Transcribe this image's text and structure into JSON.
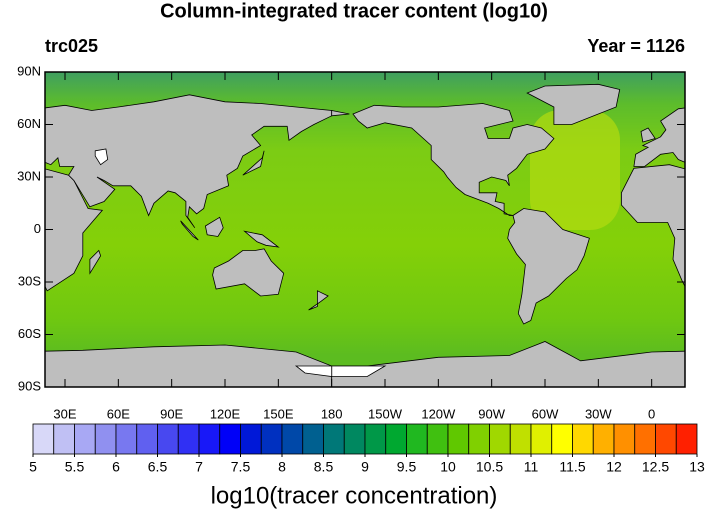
{
  "map": {
    "title": "Column-integrated tracer content (log10)",
    "left_label": "trc025",
    "right_label": "Year = 1126",
    "xlim": [
      18.75,
      378.75
    ],
    "ylim": [
      -90,
      90
    ],
    "lat_ticks": [
      {
        "value": 90,
        "label": "90N"
      },
      {
        "value": 60,
        "label": "60N"
      },
      {
        "value": 30,
        "label": "30N"
      },
      0,
      {
        "value": -30,
        "label": "30S"
      },
      {
        "value": -60,
        "label": "60S"
      },
      {
        "value": -90,
        "label": "90S"
      }
    ],
    "lon_ticks": [
      {
        "value": 30,
        "label": "30E"
      },
      {
        "value": 60,
        "label": "60E"
      },
      {
        "value": 90,
        "label": "90E"
      },
      {
        "value": 120,
        "label": "120E"
      },
      {
        "value": 150,
        "label": "150E"
      },
      180,
      {
        "value": 210,
        "label": "150W"
      },
      {
        "value": 240,
        "label": "120W"
      },
      {
        "value": 270,
        "label": "90W"
      },
      {
        "value": 300,
        "label": "60W"
      },
      {
        "value": 330,
        "label": "30W"
      },
      {
        "value": 360,
        "label": "0"
      }
    ],
    "colorbar": {
      "title": "log10(tracer concentration)",
      "range": [
        5,
        13
      ],
      "ticks": [
        5,
        5.5,
        6,
        6.5,
        7,
        7.5,
        8,
        8.5,
        9,
        9.5,
        10,
        10.5,
        11,
        11.5,
        12,
        12.5,
        13
      ],
      "colors": [
        "#d8d8f8",
        "#c0c0f4",
        "#a8a8f4",
        "#9090f0",
        "#7878f0",
        "#6060f0",
        "#4848f0",
        "#3030f4",
        "#1818f8",
        "#0000f8",
        "#0018d8",
        "#0030c0",
        "#0048a8",
        "#006090",
        "#007878",
        "#008860",
        "#009848",
        "#00a830",
        "#20b820",
        "#40c010",
        "#60c800",
        "#80d000",
        "#a0d800",
        "#c0e000",
        "#e0f000",
        "#ffff00",
        "#ffd800",
        "#ffb000",
        "#ff9000",
        "#ff7000",
        "#ff4800",
        "#ff2000"
      ]
    }
  }
}
